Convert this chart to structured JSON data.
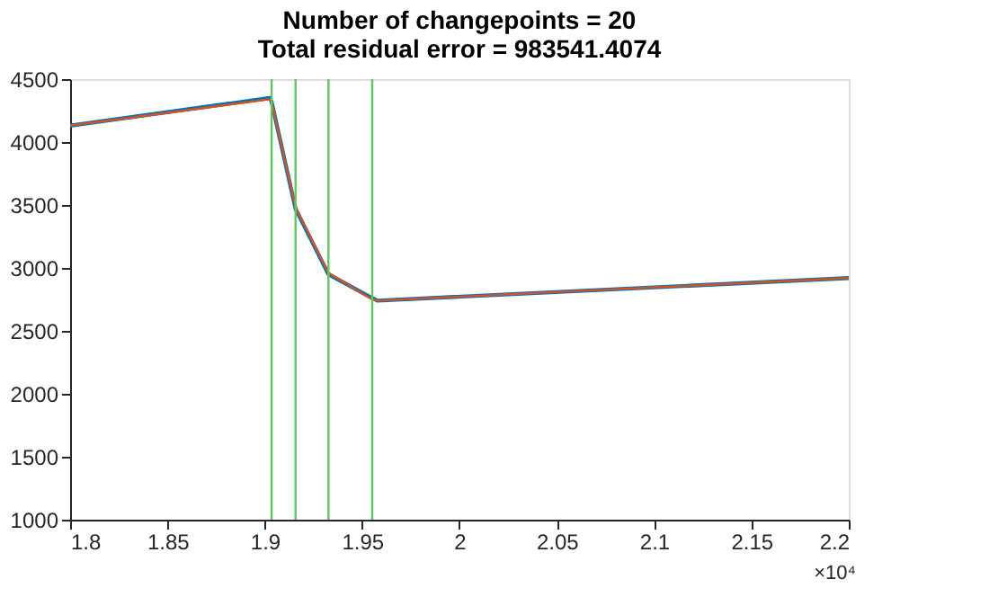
{
  "chart_data": {
    "type": "line",
    "title": [
      "Number of changepoints = 20",
      "Total residual error = 983541.4074"
    ],
    "xlim": [
      1.8,
      2.2
    ],
    "xticks": [
      1.8,
      1.85,
      1.9,
      1.95,
      2,
      2.05,
      2.1,
      2.15,
      2.2
    ],
    "ylim": [
      1000,
      4500
    ],
    "yticks": [
      1000,
      1500,
      2000,
      2500,
      3000,
      3500,
      4000,
      4500
    ],
    "series": [
      {
        "color": "#0072bd",
        "x": [
          1.8,
          1.9025,
          1.9035,
          1.9158,
          1.9327,
          1.9552,
          1.958,
          2.2
        ],
        "values": [
          4130,
          4350,
          4320,
          3470,
          2950,
          2760,
          2740,
          2920
        ]
      },
      {
        "color": "#d95319",
        "x": [
          1.8,
          1.9025,
          1.9035,
          1.9158,
          1.9327,
          1.9552,
          1.958,
          2.2
        ],
        "values": [
          4130,
          4340,
          4320,
          3480,
          2960,
          2750,
          2740,
          2920
        ]
      }
    ],
    "ref_lines": [
      {
        "axis": "x",
        "value": 1.9035,
        "color": "#5cc85c"
      },
      {
        "axis": "x",
        "value": 1.9158,
        "color": "#5cc85c"
      },
      {
        "axis": "x",
        "value": 1.9327,
        "color": "#5cc85c"
      },
      {
        "axis": "x",
        "value": 1.9552,
        "color": "#5cc85c"
      }
    ],
    "annotations": [
      "×10⁴"
    ],
    "grid": false,
    "marker": "none",
    "line_style": "solid"
  }
}
